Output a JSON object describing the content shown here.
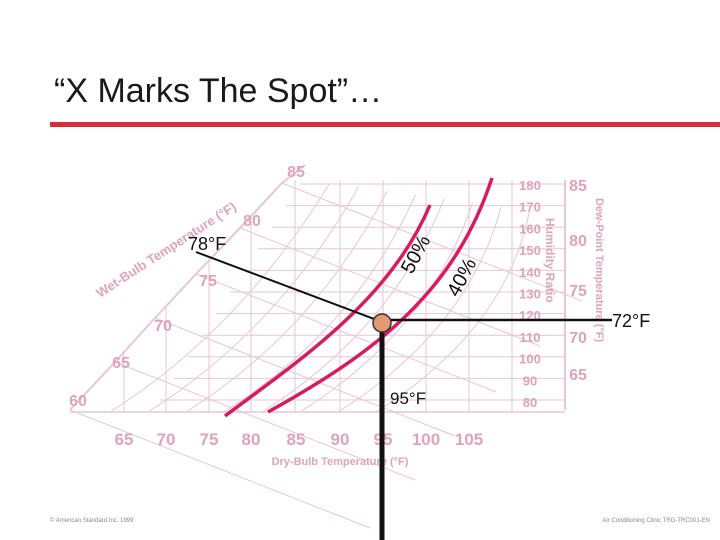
{
  "slide": {
    "title": "“X Marks The Spot”…",
    "footer_left": "© American Standard Inc. 1999",
    "footer_right": "Air Conditioning Clinic TRG-TRC001-EN",
    "accent_color": "#d32f3a"
  },
  "chart": {
    "wet_bulb_label": "Wet-Bulb Temperature (°F)",
    "dry_bulb_label": "Dry-Bulb Temperature (°F)",
    "humidity_ratio_label": "Humidity Ratio",
    "dew_point_label": "Dew-Point Temperature (°F)",
    "dry_bulb_ticks": [
      "65",
      "70",
      "75",
      "80",
      "85",
      "90",
      "95",
      "100",
      "105"
    ],
    "wet_bulb_ticks": [
      "60",
      "65",
      "70",
      "75",
      "80",
      "85"
    ],
    "humidity_ratio_ticks": [
      "180",
      "170",
      "160",
      "150",
      "140",
      "130",
      "120",
      "110",
      "100",
      "90",
      "80"
    ],
    "dew_point_ticks": [
      "85",
      "80",
      "75",
      "70",
      "65"
    ],
    "colors": {
      "grid": "#e8c6d3",
      "rh_curve": "#d81b60",
      "marker": "#e29a70",
      "lines": "#111111"
    }
  },
  "annotations": {
    "wet_bulb": "78°F",
    "dew_point": "72°F",
    "dry_bulb": "95°F",
    "rh_50": "50%",
    "rh_40": "40%"
  }
}
